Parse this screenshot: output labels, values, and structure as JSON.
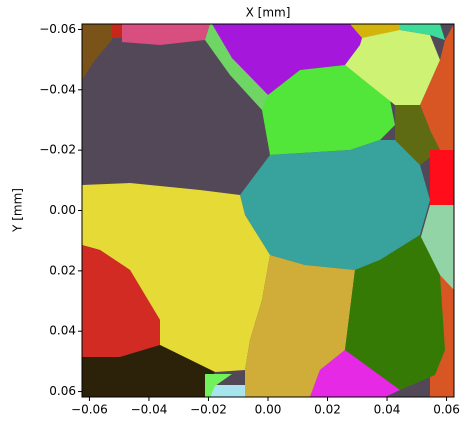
{
  "chart_data": {
    "type": "image",
    "title": "X [mm]",
    "y_label": "Y [mm]",
    "xlim": [
      -0.0625,
      0.0625
    ],
    "ylim": [
      -0.0618,
      0.0618
    ],
    "y_inverted": true,
    "xticks": [
      {
        "value": -0.06,
        "label": "−0.06"
      },
      {
        "value": -0.04,
        "label": "−0.04"
      },
      {
        "value": -0.02,
        "label": "−0.02"
      },
      {
        "value": 0,
        "label": "0.00"
      },
      0.02,
      0.04,
      0.06
    ],
    "yticks": [
      {
        "value": -0.06,
        "label": "−0.06"
      },
      {
        "value": -0.04,
        "label": "−0.04"
      },
      {
        "value": -0.02,
        "label": "−0.02"
      },
      {
        "value": 0,
        "label": "0.00"
      },
      0.02,
      0.04,
      0.06
    ]
  }
}
